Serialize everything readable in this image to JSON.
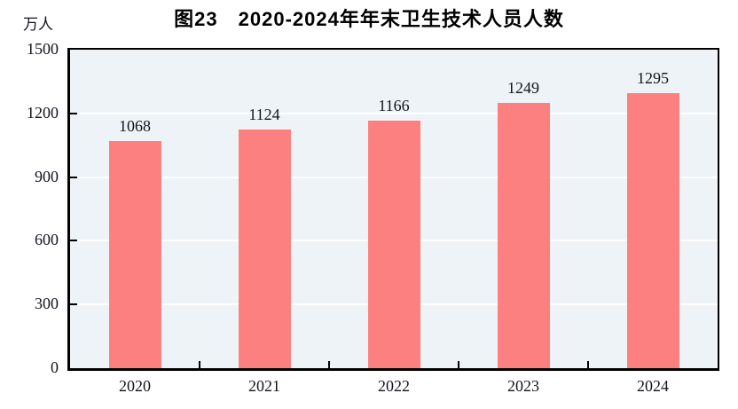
{
  "chart_data": {
    "type": "bar",
    "title": "图23　2020-2024年年末卫生技术人员人数",
    "ylabel": "万人",
    "xlabel": "",
    "categories": [
      "2020",
      "2021",
      "2022",
      "2023",
      "2024"
    ],
    "values": [
      1068,
      1124,
      1166,
      1249,
      1295
    ],
    "ylim": [
      0,
      1500
    ],
    "yticks": [
      0,
      300,
      600,
      900,
      1200,
      1500
    ],
    "grid": true,
    "legend": false,
    "colors": {
      "bar": "#FC8080",
      "plot_background": "#EDF3F6",
      "gridline": "#FFFFFF",
      "axis": "#000000",
      "text": "#14141E"
    }
  }
}
